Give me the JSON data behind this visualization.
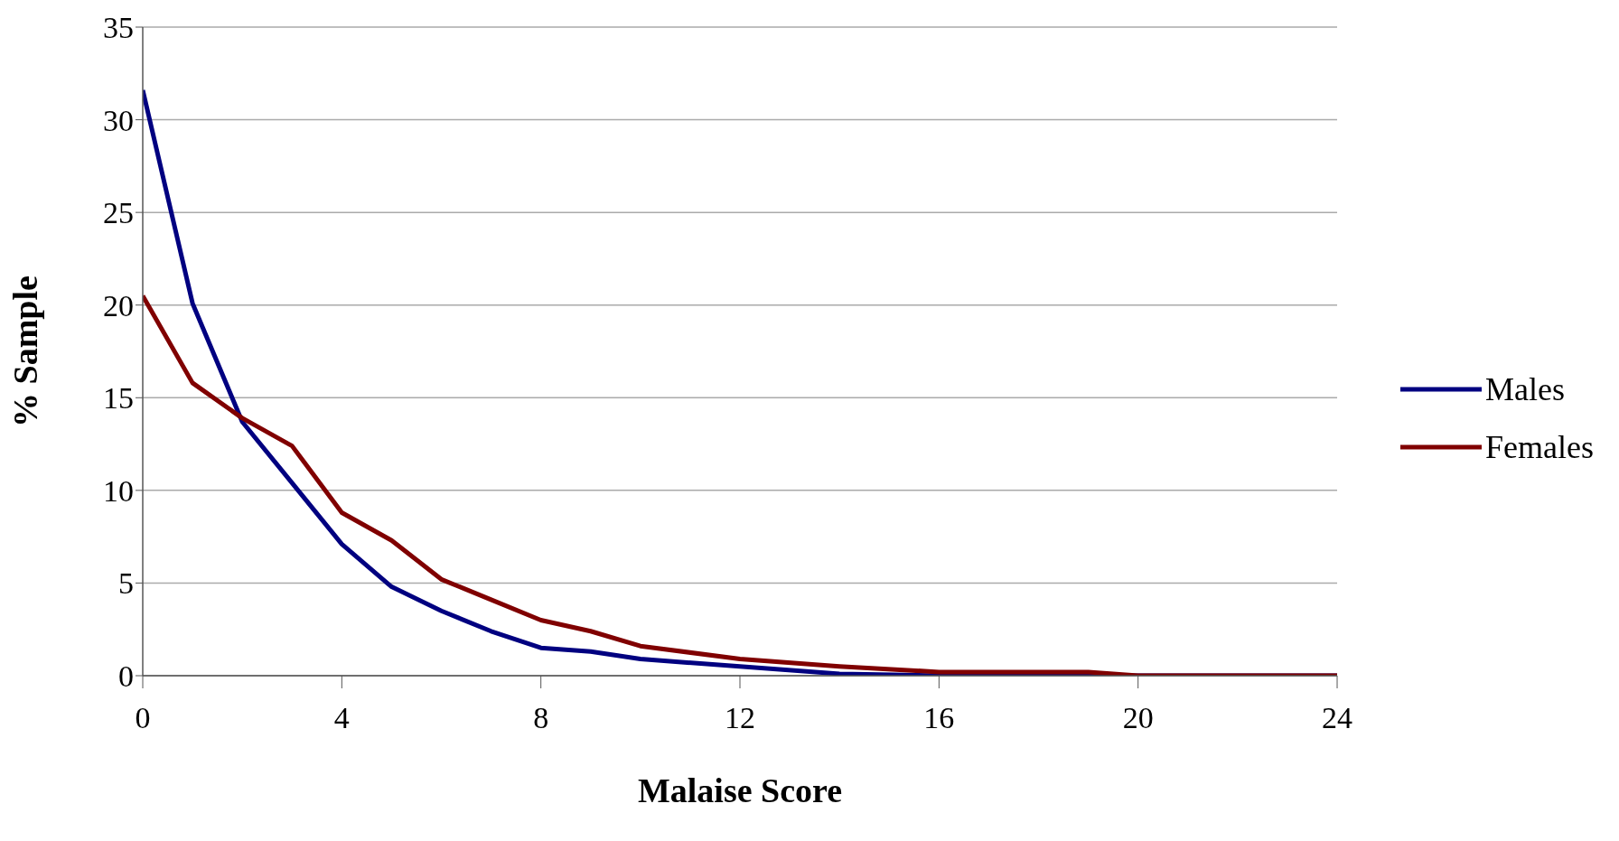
{
  "chart_data": {
    "type": "line",
    "xlabel": "Malaise Score",
    "ylabel": "% Sample",
    "series": [
      {
        "name": "Males",
        "color": "#000080",
        "x": [
          0,
          1,
          2,
          3,
          4,
          5,
          6,
          7,
          8,
          9,
          10,
          12,
          14,
          16,
          20,
          24
        ],
        "values": [
          31.6,
          20.1,
          13.7,
          10.4,
          7.1,
          4.8,
          3.5,
          2.4,
          1.5,
          1.3,
          0.9,
          0.5,
          0.1,
          0,
          0,
          0
        ]
      },
      {
        "name": "Females",
        "color": "#800000",
        "x": [
          0,
          1,
          2,
          3,
          4,
          5,
          6,
          7,
          8,
          9,
          10,
          12,
          14,
          16,
          19,
          20,
          24
        ],
        "values": [
          20.5,
          15.8,
          13.9,
          12.4,
          8.8,
          7.3,
          5.2,
          4.1,
          3.0,
          2.4,
          1.6,
          0.9,
          0.5,
          0.2,
          0.2,
          0,
          0
        ]
      }
    ],
    "xlim": [
      0,
      24
    ],
    "xticks": [
      0,
      4,
      8,
      12,
      16,
      20,
      24
    ],
    "ylim": [
      0,
      35
    ],
    "yticks": [
      0,
      5,
      10,
      15,
      20,
      25,
      30,
      35
    ],
    "grid": "y",
    "legend": "right",
    "marker": "none",
    "line_style": "solid"
  }
}
